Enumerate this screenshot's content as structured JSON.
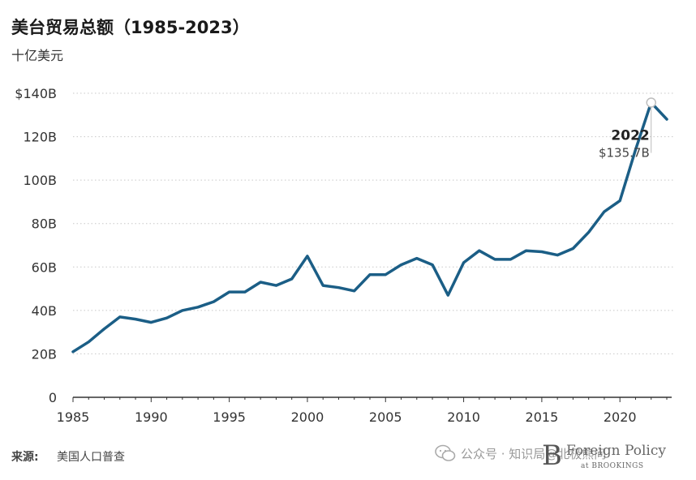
{
  "header": {
    "title": "美台贸易总额（1985-2023）",
    "subtitle": "十亿美元"
  },
  "footer": {
    "source_label": "来源:",
    "source_text": "美国人口普查",
    "watermark": "公众号 · 知识局@北极熊问",
    "brand_letter": "B",
    "brand_name": "Foreign Policy",
    "brand_sub": "at BROOKINGS"
  },
  "colors": {
    "line": "#1b5e86",
    "grid": "#c8c8c8",
    "axis": "#333333",
    "text": "#333333"
  },
  "chart_data": {
    "type": "line",
    "title": "美台贸易总额（1985-2023）",
    "ylabel": "十亿美元",
    "xlim": [
      1985,
      2023
    ],
    "ylim": [
      0,
      140
    ],
    "x_ticks": [
      1985,
      1990,
      1995,
      2000,
      2005,
      2010,
      2015,
      2020
    ],
    "y_ticks": [
      0,
      20,
      40,
      60,
      80,
      100,
      120,
      140
    ],
    "y_tick_labels": [
      "0",
      "20B",
      "40B",
      "60B",
      "80B",
      "100B",
      "120B",
      "$140B"
    ],
    "grid": "horizontal dotted",
    "annotation": {
      "x": 2022,
      "year_label": "2022",
      "value_label": "$135.7B"
    },
    "series": [
      {
        "x": [
          1985,
          1986,
          1987,
          1988,
          1989,
          1990,
          1991,
          1992,
          1993,
          1994,
          1995,
          1996,
          1997,
          1998,
          1999,
          2000,
          2001,
          2002,
          2003,
          2004,
          2005,
          2006,
          2007,
          2008,
          2009,
          2010,
          2011,
          2012,
          2013,
          2014,
          2015,
          2016,
          2017,
          2018,
          2019,
          2020,
          2021,
          2022,
          2023
        ],
        "values": [
          21,
          25.5,
          31.5,
          37,
          36,
          34.5,
          36.5,
          40,
          41.5,
          44,
          48.5,
          48.5,
          53,
          51.5,
          54.5,
          65,
          51.5,
          50.5,
          49,
          56.5,
          56.5,
          61,
          64,
          61,
          47,
          62,
          67.5,
          63.5,
          63.5,
          67.5,
          67,
          65.5,
          68.5,
          76,
          85.5,
          90.5,
          114,
          135.7,
          128
        ]
      }
    ]
  }
}
